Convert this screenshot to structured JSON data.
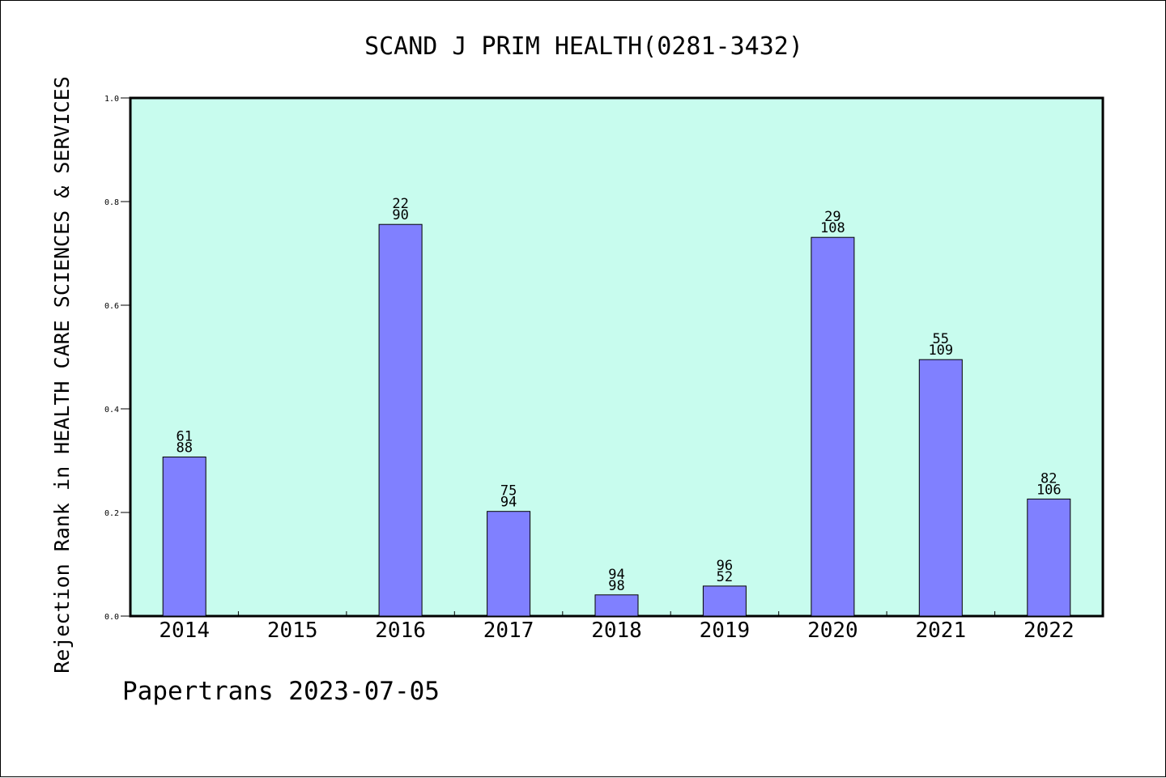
{
  "chart_data": {
    "type": "bar",
    "title": "SCAND J PRIM HEALTH(0281-3432)",
    "ylabel": "Rejection Rank in HEALTH CARE SCIENCES & SERVICES",
    "xlabel": "",
    "footer": "Papertrans 2023-07-05",
    "categories": [
      "2014",
      "2015",
      "2016",
      "2017",
      "2018",
      "2019",
      "2020",
      "2021",
      "2022"
    ],
    "values": [
      0.307,
      null,
      0.756,
      0.202,
      0.041,
      0.058,
      0.731,
      0.495,
      0.226
    ],
    "label_top": [
      "61",
      "",
      "22",
      "75",
      "94",
      "96",
      "29",
      "55",
      "82"
    ],
    "label_bottom": [
      "88",
      "",
      "90",
      "94",
      "98",
      "52",
      "108",
      "109",
      "106"
    ],
    "ylim": [
      0,
      1.0
    ],
    "yticks": [
      "0.0",
      "0.2",
      "0.4",
      "0.6",
      "0.8",
      "1.0"
    ],
    "grid": false,
    "colors": {
      "plot_background": "#c8fcee",
      "bar_fill": "#8080ff",
      "bar_stroke": "#000000"
    }
  }
}
